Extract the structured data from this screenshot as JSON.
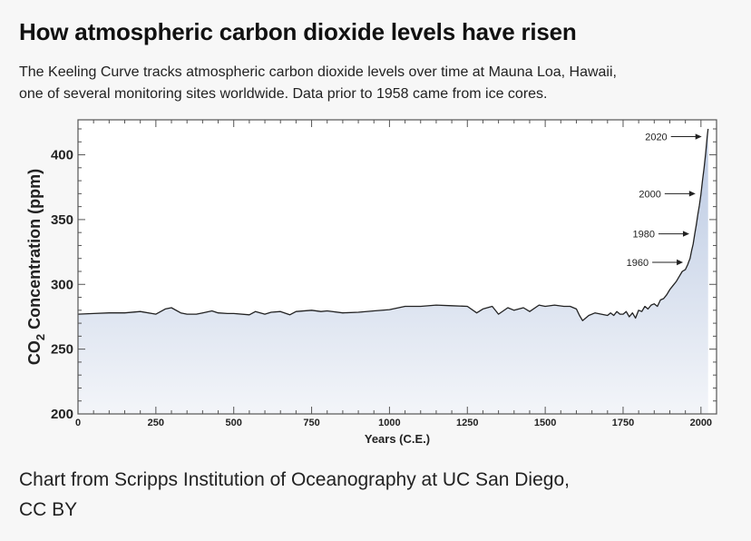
{
  "header": {
    "title": "How atmospheric carbon dioxide levels have risen",
    "subtitle_line1": "The Keeling Curve tracks atmospheric carbon dioxide levels over time at Mauna Loa, Hawaii,",
    "subtitle_line2": "one of several monitoring sites worldwide. Data prior to 1958 came from ice cores."
  },
  "caption": {
    "line1": "Chart from Scripps Institution of Oceanography at UC San Diego,",
    "line2": "CC BY"
  },
  "colors": {
    "line": "#222222",
    "area_top": "#b9c8e2",
    "area_bottom": "#f3f5f9",
    "frame": "#555555"
  },
  "chart_data": {
    "type": "area",
    "xlabel": "Years (C.E.)",
    "ylabel_main": "CO",
    "ylabel_sub": "2",
    "ylabel_rest": " Concentration (ppm)",
    "xlim": [
      0,
      2050
    ],
    "ylim": [
      200,
      427
    ],
    "x_ticks": [
      0,
      250,
      500,
      750,
      1000,
      1250,
      1500,
      1750,
      2000
    ],
    "x_tick_labels": [
      "0",
      "250",
      "500",
      "750",
      "1000",
      "1250",
      "1500",
      "1750",
      "2000"
    ],
    "y_ticks": [
      200,
      250,
      300,
      350,
      400
    ],
    "y_tick_labels": [
      "200",
      "250",
      "300",
      "350",
      "400"
    ],
    "grid": false,
    "annotations": [
      {
        "label": "2020",
        "year": 2020,
        "value": 414
      },
      {
        "label": "2000",
        "year": 2000,
        "value": 370
      },
      {
        "label": "1980",
        "year": 1980,
        "value": 339
      },
      {
        "label": "1960",
        "year": 1960,
        "value": 317
      }
    ],
    "series": [
      {
        "x": [
          0,
          50,
          100,
          150,
          200,
          250,
          280,
          300,
          330,
          350,
          380,
          400,
          430,
          450,
          480,
          500,
          550,
          570,
          600,
          620,
          650,
          680,
          700,
          750,
          780,
          800,
          850,
          900,
          950,
          1000,
          1050,
          1100,
          1150,
          1200,
          1250,
          1280,
          1300,
          1330,
          1350,
          1380,
          1400,
          1430,
          1450,
          1480,
          1500,
          1530,
          1560,
          1580,
          1600,
          1610,
          1620,
          1640,
          1660,
          1680,
          1700,
          1710,
          1720,
          1730,
          1740,
          1750,
          1760,
          1770,
          1780,
          1790,
          1800,
          1810,
          1820,
          1830,
          1840,
          1850,
          1860,
          1870,
          1880,
          1890,
          1900,
          1910,
          1920,
          1930,
          1940,
          1950,
          1958,
          1960,
          1965,
          1970,
          1975,
          1980,
          1985,
          1990,
          1995,
          2000,
          2005,
          2010,
          2015,
          2020,
          2023
        ],
        "y": [
          277,
          277.5,
          278,
          278,
          279,
          277,
          281,
          282,
          278,
          277,
          277,
          278,
          279.5,
          278,
          277.5,
          277.5,
          276.5,
          279,
          277,
          278.5,
          279,
          276.5,
          279,
          280,
          279,
          279.5,
          278,
          278.5,
          279.5,
          280.5,
          283,
          283,
          284,
          283.5,
          283,
          278,
          281,
          283,
          277,
          282,
          280,
          282,
          279,
          284,
          283,
          284,
          283,
          283,
          281,
          276,
          272,
          276,
          278,
          277,
          276,
          278,
          276,
          279,
          277,
          277,
          279,
          275,
          278,
          274,
          280,
          279,
          283,
          281,
          284,
          285,
          283,
          288,
          289,
          292,
          296,
          299,
          302,
          306,
          310,
          311.5,
          315.5,
          317,
          320,
          326,
          331,
          339,
          346,
          354,
          361,
          369.5,
          380,
          390,
          401,
          414,
          420
        ]
      }
    ]
  }
}
